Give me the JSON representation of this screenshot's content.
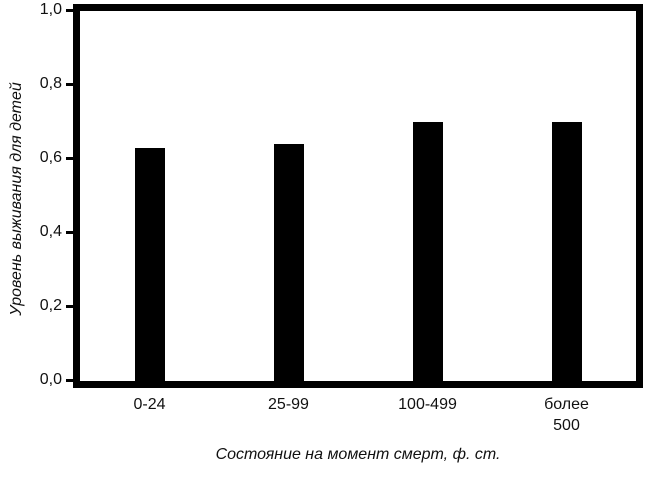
{
  "chart_data": {
    "type": "bar",
    "title": "",
    "categories": [
      "0-24",
      "25-99",
      "100-499",
      "более 500"
    ],
    "values": [
      0.63,
      0.64,
      0.7,
      0.7
    ],
    "xlabel": "Состояние на момент смерт, ф. ст.",
    "ylabel": "Уровень выживания для детей",
    "ylim": [
      0,
      1
    ],
    "y_ticks": [
      {
        "label": "0,0",
        "value": 0.0
      },
      {
        "label": "0,2",
        "value": 0.2
      },
      {
        "label": "0,4",
        "value": 0.4
      },
      {
        "label": "0,6",
        "value": 0.6
      },
      {
        "label": "0,8",
        "value": 0.8
      },
      {
        "label": "1,0",
        "value": 1.0
      }
    ],
    "bar_color": "#000000",
    "frame_color": "#000000",
    "background_color": "#ffffff",
    "grid": false,
    "legend": null
  }
}
